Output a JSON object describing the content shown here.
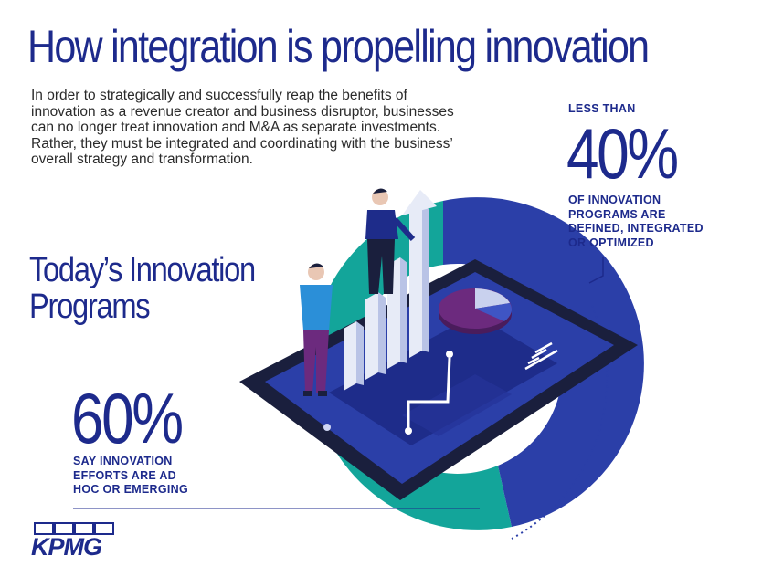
{
  "title": "How integration is propelling innovation",
  "intro": "In order to strategically and successfully reap the benefits of innovation as a revenue creator and business disruptor, businesses can no longer treat innovation and M&A as separate investments. Rather, they must be integrated and coordinating with the business’ overall strategy and transformation.",
  "subhead_line1": "Today’s Innovation",
  "subhead_line2": "Programs",
  "stat_right": {
    "prefix": "LESS THAN",
    "value": "40%",
    "label_line1": "OF INNOVATION",
    "label_line2": "PROGRAMS ARE",
    "label_line3": "DEFINED, INTEGRATED",
    "label_line4": "OR OPTIMIZED"
  },
  "stat_left": {
    "value": "60%",
    "label_line1": "SAY INNOVATION",
    "label_line2": "EFFORTS ARE AD",
    "label_line3": "HOC OR EMERGING"
  },
  "logo": "KPMG",
  "colors": {
    "navy": "#1d2a8c",
    "teal": "#13a59a",
    "purple": "#6c2a7e",
    "blue": "#2b3fa8"
  }
}
